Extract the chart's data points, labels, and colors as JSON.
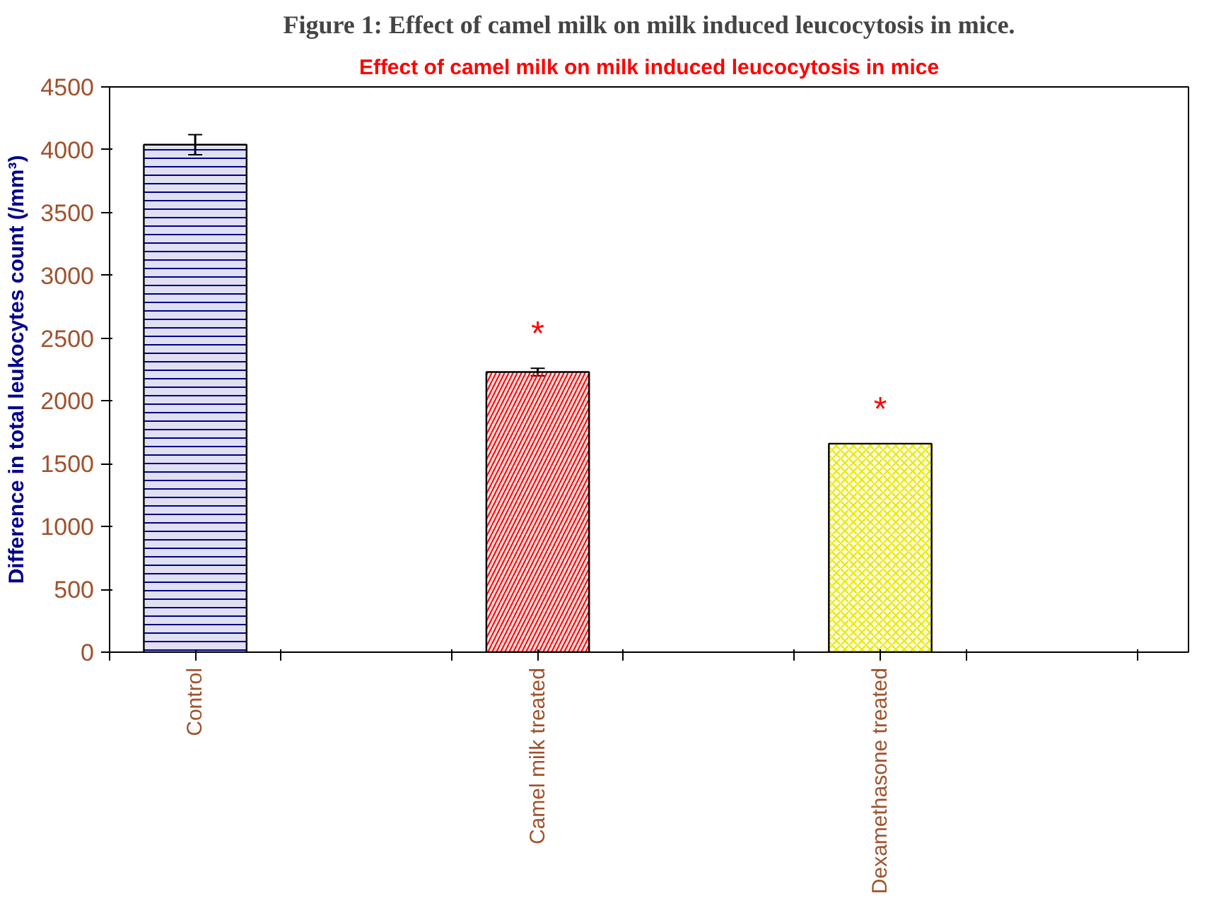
{
  "chart_data": {
    "type": "bar",
    "title": "Figure 1: Effect of camel milk on milk induced leucocytosis in mice.",
    "subtitle": "Effect of camel milk on milk induced leucocytosis in mice",
    "ylabel": "Difference in total leukocytes count (/mm³)",
    "categories": [
      "Control",
      "Camel milk treated",
      "Dexamethasone treated"
    ],
    "values": [
      4040,
      2230,
      1660
    ],
    "errors": [
      80,
      30,
      null
    ],
    "colors": [
      "#00008b",
      "#ff0000",
      "#e8e800"
    ],
    "ylim": [
      0,
      4500
    ],
    "yticks": [
      0,
      500,
      1000,
      1500,
      2000,
      2500,
      3000,
      3500,
      4000,
      4500
    ],
    "grid": false,
    "annotations": [
      "*",
      "*"
    ]
  }
}
